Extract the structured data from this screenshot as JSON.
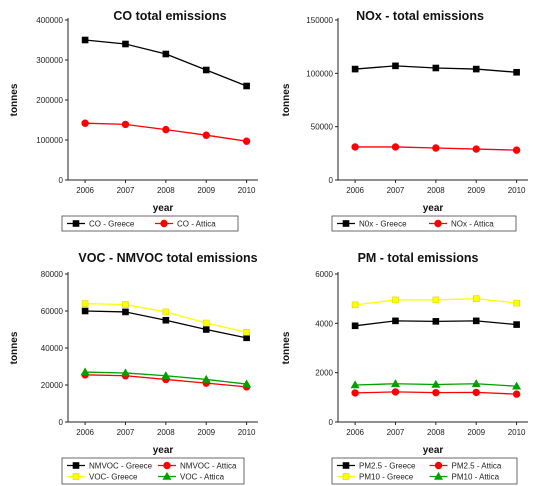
{
  "chart_data": [
    {
      "type": "line",
      "title": "CO total emissions",
      "xlabel": "year",
      "ylabel": "tonnes",
      "x": [
        2006,
        2007,
        2008,
        2009,
        2010
      ],
      "ylim": [
        0,
        400000
      ],
      "yticks": [
        0,
        100000,
        200000,
        300000,
        400000
      ],
      "grid": false,
      "legend": "bottom",
      "series": [
        {
          "name": "CO - Greece",
          "values": [
            350000,
            340000,
            315000,
            275000,
            235000
          ],
          "color": "#000000",
          "marker": "square"
        },
        {
          "name": "CO - Attica",
          "values": [
            142000,
            139000,
            126000,
            112000,
            97000
          ],
          "color": "#ff0000",
          "marker": "circle"
        }
      ]
    },
    {
      "type": "line",
      "title": "NOx - total emissions",
      "xlabel": "year",
      "ylabel": "tonnes",
      "x": [
        2006,
        2007,
        2008,
        2009,
        2010
      ],
      "ylim": [
        0,
        150000
      ],
      "yticks": [
        0,
        50000,
        100000,
        150000
      ],
      "grid": false,
      "legend": "bottom",
      "series": [
        {
          "name": "N0x - Greece",
          "values": [
            104000,
            107000,
            105000,
            104000,
            101000
          ],
          "color": "#000000",
          "marker": "square"
        },
        {
          "name": "NOx - Attica",
          "values": [
            31000,
            31000,
            30000,
            29000,
            28000
          ],
          "color": "#ff0000",
          "marker": "circle"
        }
      ]
    },
    {
      "type": "line",
      "title": "VOC - NMVOC total emissions",
      "xlabel": "year",
      "ylabel": "tonnes",
      "x": [
        2006,
        2007,
        2008,
        2009,
        2010
      ],
      "ylim": [
        0,
        80000
      ],
      "yticks": [
        0,
        20000,
        40000,
        60000,
        80000
      ],
      "grid": false,
      "legend": "bottom",
      "series": [
        {
          "name": "NMVOC - Greece",
          "values": [
            60000,
            59500,
            55000,
            50000,
            45500
          ],
          "color": "#000000",
          "marker": "square"
        },
        {
          "name": "NMVOC - Attica",
          "values": [
            25500,
            25000,
            23000,
            21000,
            19000
          ],
          "color": "#ff0000",
          "marker": "circle"
        },
        {
          "name": "VOC- Greece",
          "values": [
            64000,
            63500,
            59500,
            53500,
            48500
          ],
          "color": "#ffff00",
          "marker": "square"
        },
        {
          "name": "VOC - Attica",
          "values": [
            27000,
            26500,
            25000,
            23000,
            20500
          ],
          "color": "#00a000",
          "marker": "triangle"
        }
      ]
    },
    {
      "type": "line",
      "title": "PM - total emissions",
      "xlabel": "year",
      "ylabel": "tonnes",
      "x": [
        2006,
        2007,
        2008,
        2009,
        2010
      ],
      "ylim": [
        0,
        6000
      ],
      "yticks": [
        0,
        2000,
        4000,
        6000
      ],
      "grid": false,
      "legend": "bottom",
      "series": [
        {
          "name": "PM2.5 - Greece",
          "values": [
            3900,
            4100,
            4080,
            4100,
            3950
          ],
          "color": "#000000",
          "marker": "square"
        },
        {
          "name": "PM2.5 - Attica",
          "values": [
            1180,
            1220,
            1190,
            1200,
            1130
          ],
          "color": "#ff0000",
          "marker": "circle"
        },
        {
          "name": "PM10 - Greece",
          "values": [
            4750,
            4950,
            4950,
            5000,
            4820
          ],
          "color": "#ffff00",
          "marker": "square"
        },
        {
          "name": "PM10 - Attica",
          "values": [
            1500,
            1550,
            1520,
            1550,
            1450
          ],
          "color": "#00a000",
          "marker": "triangle"
        }
      ]
    }
  ]
}
